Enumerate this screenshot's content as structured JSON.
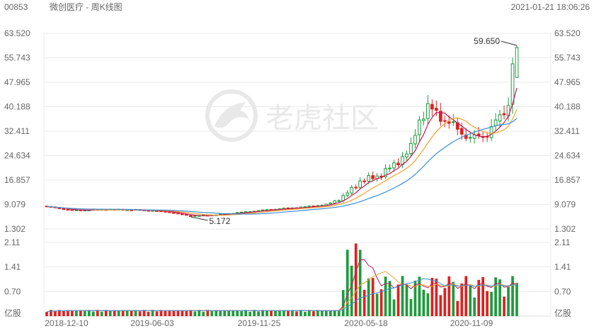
{
  "header": {
    "code": "00853",
    "name": "微创医疗 - 周K线图",
    "datetime": "2021-01-21 18:06:26"
  },
  "watermark": {
    "text": "老虎社区"
  },
  "colors": {
    "up": "#1e9b3c",
    "down": "#e02020",
    "ma5": "#c2185b",
    "ma10": "#f5a030",
    "ma20": "#3a8fd8",
    "grid": "#ebebeb",
    "text": "#666666"
  },
  "chart_data": [
    {
      "type": "candlestick",
      "title": "",
      "y_ticks": [
        "63.520",
        "55.743",
        "47.965",
        "40.188",
        "32.411",
        "24.634",
        "16.857",
        "9.079",
        "1.302"
      ],
      "ylim": [
        1.302,
        63.52
      ],
      "x_ticks": [
        "2018-12-10",
        "2019-06-03",
        "2019-11-25",
        "2020-05-18",
        "2020-11-09"
      ],
      "annotations": [
        {
          "label": "59.650",
          "type": "max"
        },
        {
          "label": "5.172",
          "type": "min"
        }
      ],
      "series": [
        {
          "name": "",
          "color": "#c2185b"
        },
        {
          "name": "",
          "color": "#f5a030"
        },
        {
          "name": "",
          "color": "#3a8fd8"
        }
      ]
    },
    {
      "type": "bar",
      "title": "",
      "unit_label": "亿股",
      "y_ticks": [
        "2.11",
        "1.41",
        "0.70"
      ],
      "ylim": [
        0,
        2.11
      ]
    }
  ]
}
